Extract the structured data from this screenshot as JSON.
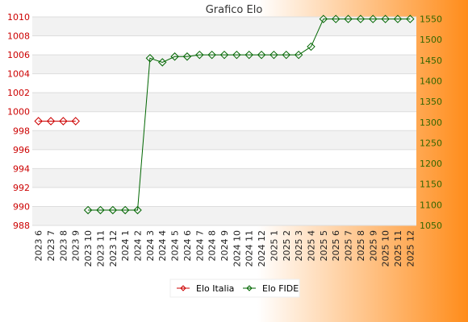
{
  "chart_data": {
    "type": "line",
    "title": "Grafico Elo",
    "categories": [
      "2023 6",
      "2023 7",
      "2023 8",
      "2023 9",
      "2023 10",
      "2023 11",
      "2023 12",
      "2024 1",
      "2024 2",
      "2024 3",
      "2024 4",
      "2024 5",
      "2024 6",
      "2024 7",
      "2024 8",
      "2024 9",
      "2024 10",
      "2024 11",
      "2024 12",
      "2025 1",
      "2025 2",
      "2025 3",
      "2025 4",
      "2025 5",
      "2025 6",
      "2025 7",
      "2025 8",
      "2025 9",
      "2025 10",
      "2025 11",
      "2025 12"
    ],
    "y_left": {
      "ticks": [
        "988",
        "990",
        "992",
        "994",
        "996",
        "998",
        "1000",
        "1002",
        "1004",
        "1006",
        "1008",
        "1010"
      ],
      "ylim": [
        988,
        1010
      ],
      "color": "#cc0000"
    },
    "y_right": {
      "ticks": [
        "1050",
        "1100",
        "1150",
        "1200",
        "1250",
        "1300",
        "1350",
        "1400",
        "1450",
        "1500",
        "1550"
      ],
      "ylim": [
        1050,
        1555
      ],
      "color": "#336600"
    },
    "series": [
      {
        "name": "Elo Italia",
        "axis": "left",
        "color": "#cc0000",
        "values": [
          999,
          999,
          999,
          999,
          null,
          null,
          null,
          null,
          null,
          null,
          null,
          null,
          null,
          null,
          null,
          null,
          null,
          null,
          null,
          null,
          null,
          null,
          null,
          null,
          null,
          null,
          null,
          null,
          null,
          null,
          null
        ]
      },
      {
        "name": "Elo FIDE",
        "axis": "right",
        "color": "#006600",
        "values": [
          null,
          null,
          null,
          null,
          1087,
          1087,
          1087,
          1087,
          1087,
          1455,
          1445,
          1459,
          1459,
          1463,
          1463,
          1463,
          1463,
          1463,
          1463,
          1463,
          1463,
          1463,
          1483,
          1550,
          1550,
          1550,
          1550,
          1550,
          1550,
          1550,
          1550
        ]
      }
    ],
    "grid": true,
    "legend": "bottom-center",
    "background_gradient": [
      "#ffffff",
      "#ff8c1a"
    ]
  }
}
